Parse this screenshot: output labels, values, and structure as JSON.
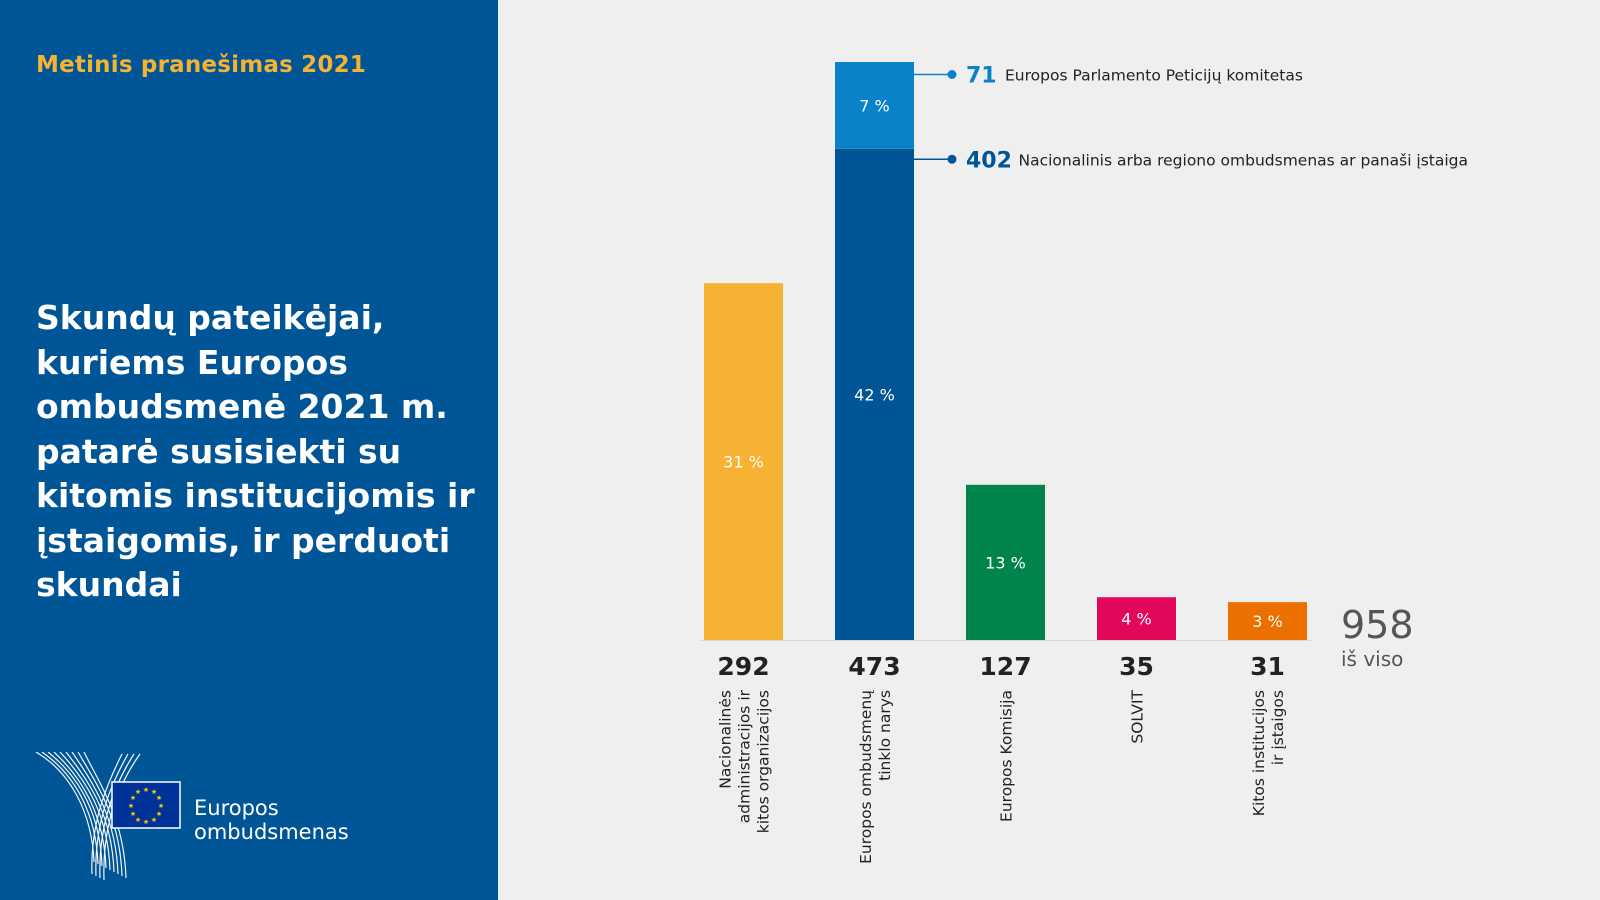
{
  "header": {
    "report_label": "Metinis pranešimas 2021",
    "headline": "Skundų pateikėjai, kuriems Europos ombudsmenė 2021 m. patarė susisiekti su kitomis institucijomis ir įstaigomis, ir perduoti skundai"
  },
  "logo": {
    "line1": "Europos",
    "line2": "ombudsmenas"
  },
  "colors": {
    "panel_blue": "#005597",
    "accent_yellow": "#f6b233",
    "dark_blue": "#005597",
    "light_blue": "#0a82c9",
    "green": "#00844c",
    "pink": "#e2075a",
    "orange": "#ec7000",
    "background": "#efefef"
  },
  "chart_data": {
    "type": "bar",
    "categories": [
      "Nacionalinės administracijos ir kitos organizacijos",
      "Europos ombudsmenų tinklo narys",
      "Europos Komisija",
      "SOLVIT",
      "Kitos institucijos ir įstaigos"
    ],
    "category_label_lines": [
      [
        "Nacionalinės",
        "administracijos ir",
        "kitos organizacijos"
      ],
      [
        "Europos ombudsmenų",
        "tinklo narys"
      ],
      [
        "Europos Komisija"
      ],
      [
        "SOLVIT"
      ],
      [
        "Kitos institucijos",
        "ir įstaigos"
      ]
    ],
    "values": [
      292,
      473,
      127,
      35,
      31
    ],
    "value_labels": [
      "292",
      "473",
      "127",
      "35",
      "31"
    ],
    "percent_labels": [
      "31 %",
      "",
      "13 %",
      "4 %",
      "3 %"
    ],
    "colors": [
      "#f6b233",
      "#005597",
      "#00844c",
      "#e2075a",
      "#ec7000"
    ],
    "stack": {
      "category_index": 1,
      "segments": [
        {
          "name": "Nacionalinis arba regiono ombudsmenas ar panaši įstaiga",
          "value": 402,
          "value_label": "402",
          "percent_label": "42 %",
          "color": "#005597"
        },
        {
          "name": "Europos Parlamento Peticijų komitetas",
          "value": 71,
          "value_label": "71",
          "percent_label": "7 %",
          "color": "#0a82c9"
        }
      ]
    },
    "total": {
      "value": "958",
      "label": "iš viso"
    },
    "title": "",
    "xlabel": "",
    "ylabel": "",
    "ylim": [
      0,
      473
    ],
    "grid": false,
    "legend": "callouts-top-right"
  }
}
